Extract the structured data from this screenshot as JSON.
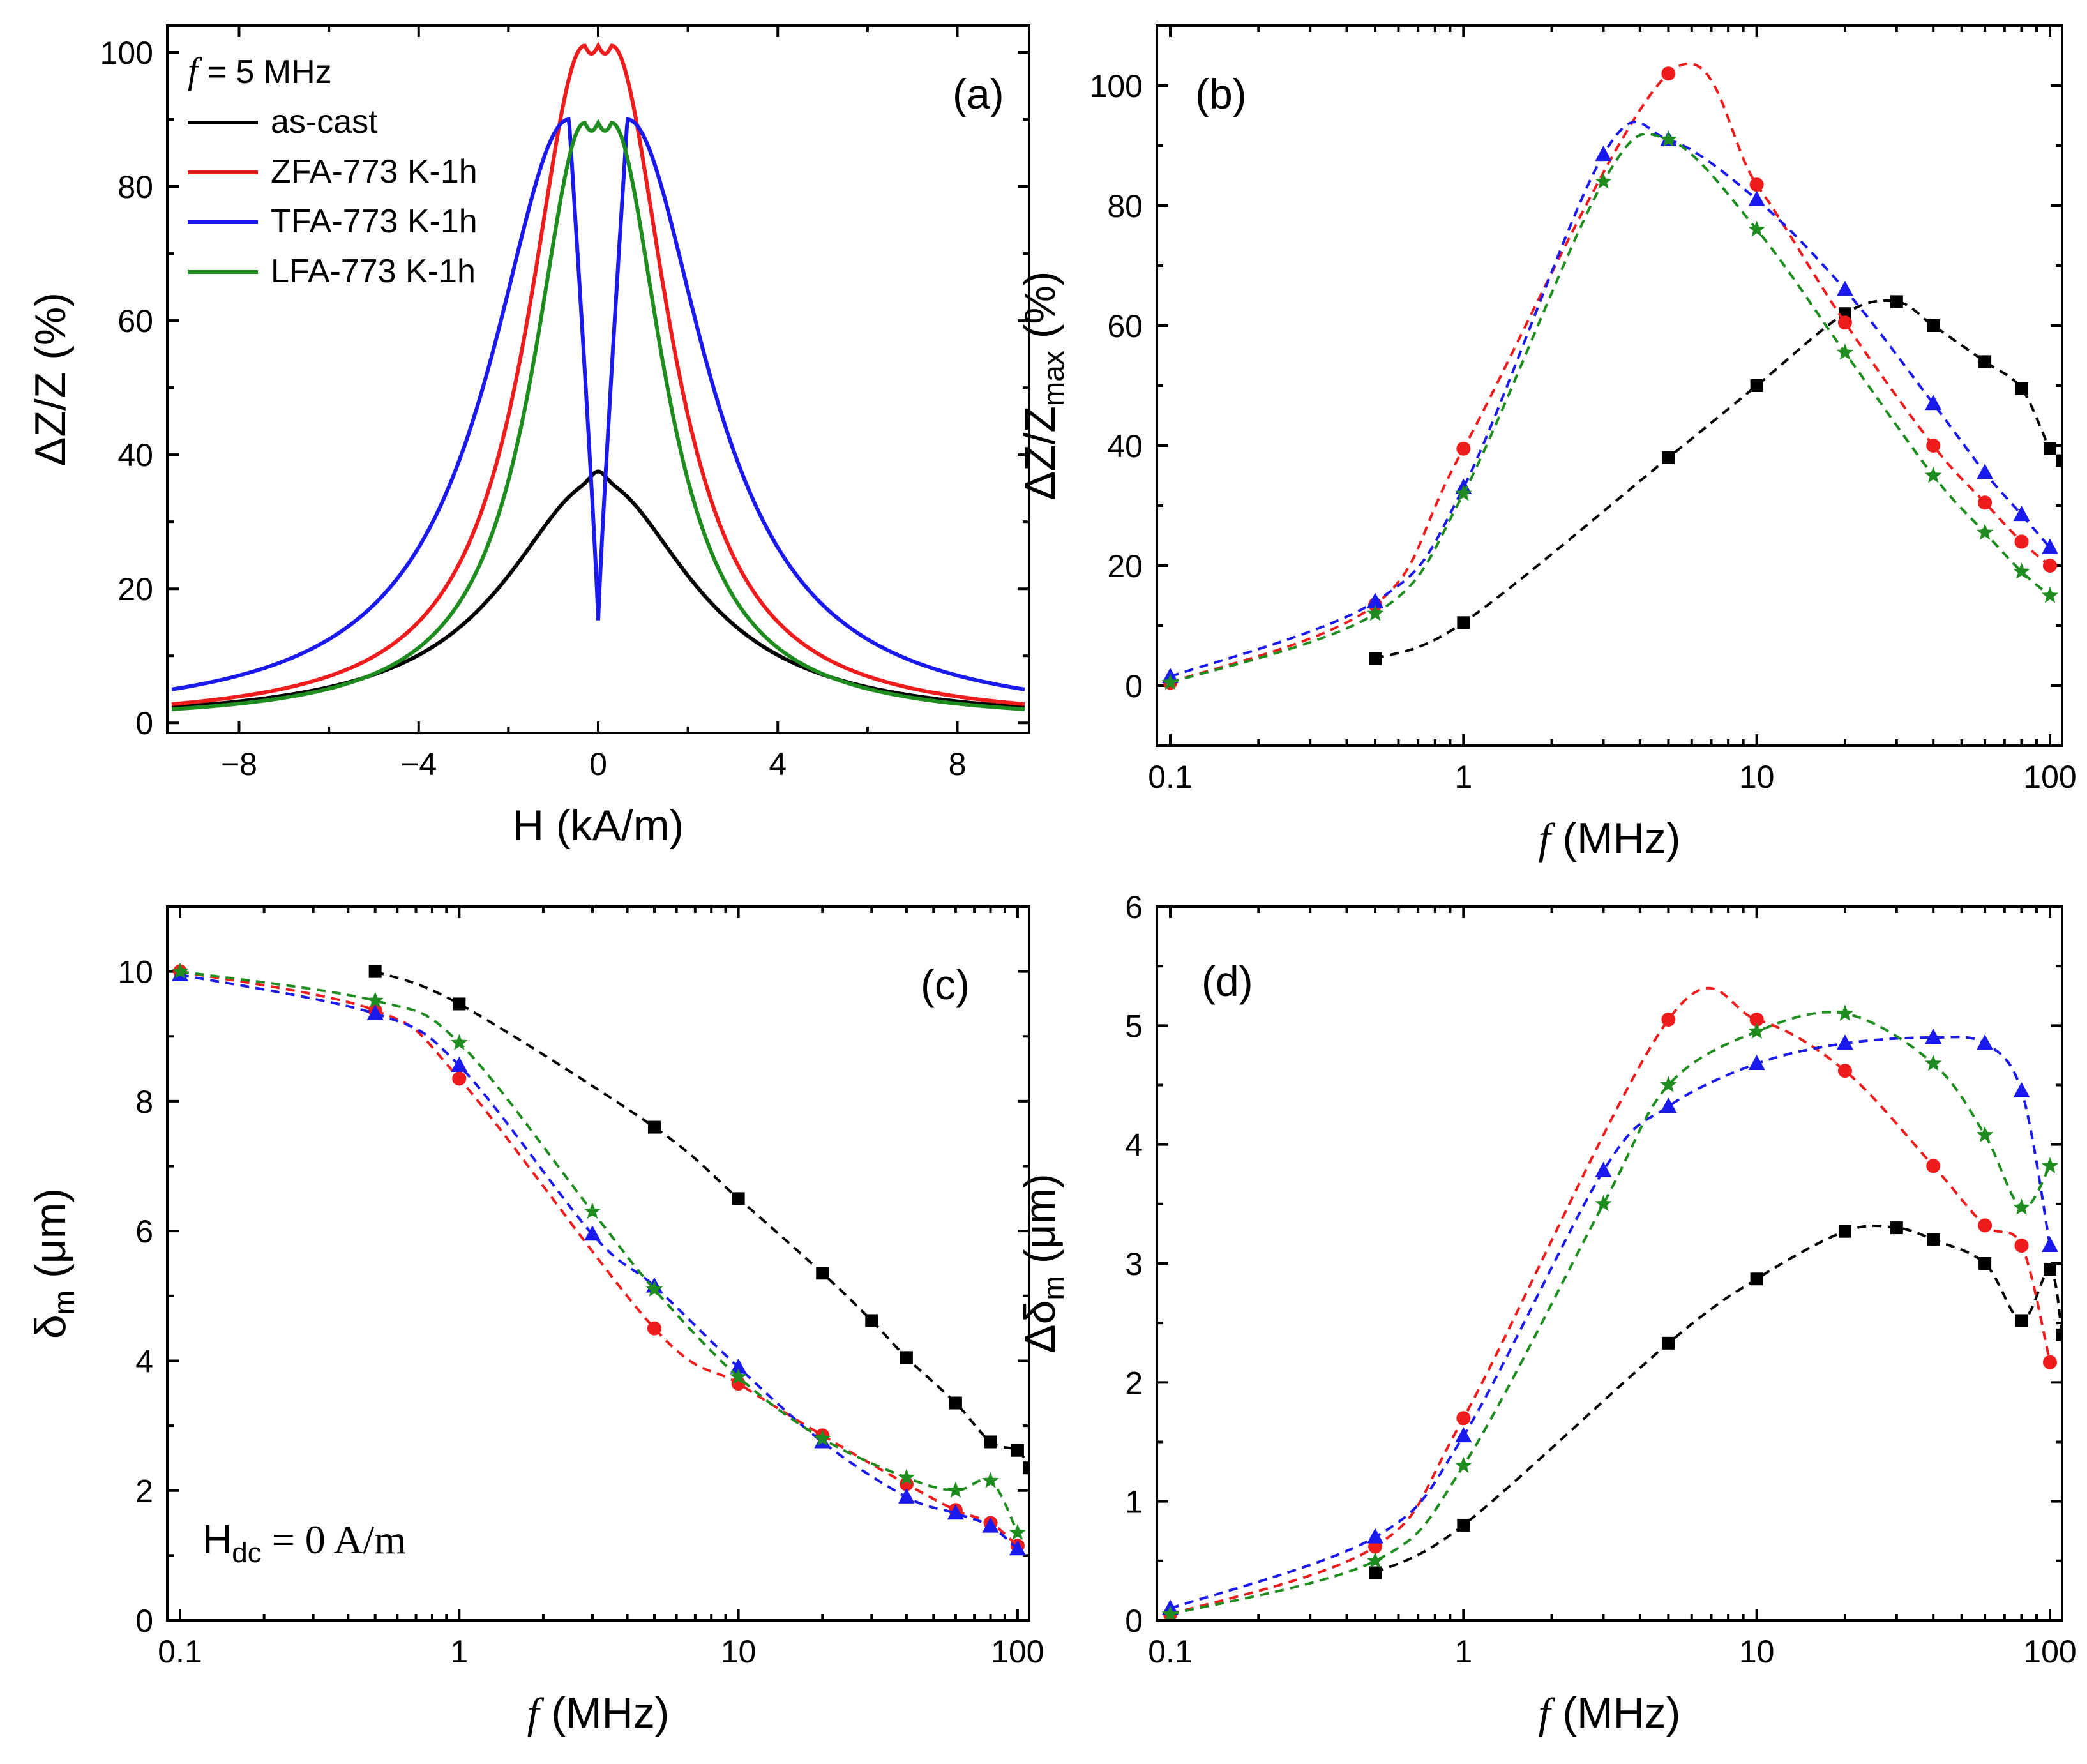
{
  "colors": {
    "as_cast": "#000000",
    "zfa": "#ee1c1c",
    "tfa": "#1a1aee",
    "lfa": "#1f8c1f"
  },
  "chart_data": [
    {
      "id": "a",
      "type": "line",
      "panel_label": "(a)",
      "xlabel": "H (kA/m)",
      "ylabel": "ΔZ/Z (%)",
      "xlim": [
        -9.6,
        9.6
      ],
      "ylim": [
        -1.5,
        104
      ],
      "xticks": [
        -8,
        -4,
        0,
        4,
        8
      ],
      "xtick_labels": [
        "−8",
        "−4",
        "0",
        "4",
        "8"
      ],
      "yticks": [
        0,
        20,
        40,
        60,
        80,
        100
      ],
      "legend_title_italic": "f",
      "legend_title_rest": " = 5 MHz",
      "legend_position": "top-left",
      "series": [
        {
          "name": "as-cast",
          "color_key": "as_cast",
          "model": "lorentz",
          "peak": 36,
          "hk": 0,
          "w": 2.5,
          "dip": 0,
          "tip": 1.5
        },
        {
          "name": "ZFA-773 K-1h",
          "color_key": "zfa",
          "model": "lorentz",
          "peak": 101,
          "hk": 0.3,
          "w": 1.55,
          "dip": 0,
          "tip": 0
        },
        {
          "name": "TFA-773 K-1h",
          "color_key": "tfa",
          "model": "lorentz",
          "peak": 90,
          "hk": 0.65,
          "w": 2.35,
          "dip": 1,
          "tip": 0
        },
        {
          "name": "LFA-773 K-1h",
          "color_key": "lfa",
          "model": "lorentz",
          "peak": 89.5,
          "hk": 0.3,
          "w": 1.4,
          "dip": 0,
          "tip": 0
        }
      ]
    },
    {
      "id": "b",
      "type": "line",
      "scale": "log",
      "panel_label": "(b)",
      "xlabel_italic": "f",
      "xlabel_rest": " (MHz)",
      "ylabel": "ΔZ/Z",
      "ylabel_sub": "max",
      "ylabel_tail": " (%)",
      "xlim": [
        0.09,
        110
      ],
      "ylim": [
        -10,
        110
      ],
      "xticks": [
        0.1,
        1,
        10,
        100
      ],
      "xtick_labels": [
        "0.1",
        "1",
        "10",
        "100"
      ],
      "yticks": [
        0,
        20,
        40,
        60,
        80,
        100
      ],
      "series": [
        {
          "name": "as-cast",
          "color_key": "as_cast",
          "marker": "square",
          "x": [
            0.5,
            1,
            5,
            10,
            20,
            30,
            40,
            60,
            80,
            100,
            110
          ],
          "y": [
            4.5,
            10.5,
            38,
            50,
            62,
            64,
            60,
            54,
            49.5,
            39.5,
            37.5
          ]
        },
        {
          "name": "ZFA-773 K-1h",
          "color_key": "zfa",
          "marker": "circle",
          "x": [
            0.1,
            0.5,
            1,
            5,
            10,
            20,
            40,
            60,
            80,
            100
          ],
          "y": [
            0.5,
            13.5,
            39.5,
            102,
            83.5,
            60.5,
            40,
            30.5,
            24,
            20
          ]
        },
        {
          "name": "TFA-773 K-1h",
          "color_key": "tfa",
          "marker": "triangle",
          "x": [
            0.1,
            0.5,
            1,
            3,
            5,
            10,
            20,
            40,
            60,
            80,
            100
          ],
          "y": [
            1.5,
            14,
            33,
            88.5,
            91,
            81,
            66,
            47,
            35.5,
            28.5,
            23
          ]
        },
        {
          "name": "LFA-773 K-1h",
          "color_key": "lfa",
          "marker": "star",
          "x": [
            0.1,
            0.5,
            1,
            3,
            5,
            10,
            20,
            40,
            60,
            80,
            100
          ],
          "y": [
            0.5,
            12,
            32,
            84,
            91,
            76,
            55.5,
            35,
            25.5,
            19,
            15
          ]
        }
      ]
    },
    {
      "id": "c",
      "type": "line",
      "scale": "log",
      "panel_label": "(c)",
      "xlabel_italic": "f",
      "xlabel_rest": " (MHz)",
      "ylabel": "δ",
      "ylabel_sub": "m",
      "ylabel_tail": " (μm)",
      "annotation": "H",
      "annotation_sub": "dc",
      "annotation_tail": " = 0 A/m",
      "xlim": [
        0.09,
        110
      ],
      "ylim": [
        0,
        11
      ],
      "xticks": [
        0.1,
        1,
        10,
        100
      ],
      "xtick_labels": [
        "0.1",
        "1",
        "10",
        "100"
      ],
      "yticks": [
        0,
        2,
        4,
        6,
        8,
        10
      ],
      "series": [
        {
          "name": "as-cast",
          "color_key": "as_cast",
          "marker": "square",
          "x": [
            0.5,
            1,
            5,
            10,
            20,
            30,
            40,
            60,
            80,
            100,
            110
          ],
          "y": [
            10,
            9.5,
            7.6,
            6.5,
            5.35,
            4.62,
            4.05,
            3.35,
            2.75,
            2.62,
            2.35
          ]
        },
        {
          "name": "ZFA-773 K-1h",
          "color_key": "zfa",
          "marker": "circle",
          "x": [
            0.1,
            0.5,
            1,
            5,
            10,
            20,
            40,
            60,
            80,
            100
          ],
          "y": [
            10,
            9.4,
            8.35,
            4.5,
            3.65,
            2.85,
            2.1,
            1.7,
            1.5,
            1.15
          ]
        },
        {
          "name": "TFA-773 K-1h",
          "color_key": "tfa",
          "marker": "triangle",
          "x": [
            0.1,
            0.5,
            1,
            3,
            5,
            10,
            20,
            40,
            60,
            80,
            100
          ],
          "y": [
            9.95,
            9.35,
            8.55,
            5.95,
            5.15,
            3.9,
            2.75,
            1.9,
            1.65,
            1.45,
            1.1
          ]
        },
        {
          "name": "LFA-773 K-1h",
          "color_key": "lfa",
          "marker": "star",
          "x": [
            0.1,
            0.5,
            1,
            3,
            5,
            10,
            20,
            40,
            60,
            80,
            100
          ],
          "y": [
            10,
            9.55,
            8.9,
            6.3,
            5.1,
            3.75,
            2.8,
            2.2,
            2.0,
            2.15,
            1.35
          ]
        }
      ]
    },
    {
      "id": "d",
      "type": "line",
      "scale": "log",
      "panel_label": "(d)",
      "xlabel_italic": "f",
      "xlabel_rest": " (MHz)",
      "ylabel": "Δδ",
      "ylabel_sub": "m",
      "ylabel_tail": " (μm)",
      "xlim": [
        0.09,
        110
      ],
      "ylim": [
        0,
        6
      ],
      "xticks": [
        0.1,
        1,
        10,
        100
      ],
      "xtick_labels": [
        "0.1",
        "1",
        "10",
        "100"
      ],
      "yticks": [
        0,
        1,
        2,
        3,
        4,
        5,
        6
      ],
      "series": [
        {
          "name": "as-cast",
          "color_key": "as_cast",
          "marker": "square",
          "x": [
            0.5,
            1,
            5,
            10,
            20,
            30,
            40,
            60,
            80,
            100,
            110
          ],
          "y": [
            0.4,
            0.8,
            2.33,
            2.87,
            3.27,
            3.3,
            3.2,
            3.0,
            2.52,
            2.95,
            2.4
          ]
        },
        {
          "name": "ZFA-773 K-1h",
          "color_key": "zfa",
          "marker": "circle",
          "x": [
            0.1,
            0.5,
            1,
            5,
            10,
            20,
            40,
            60,
            80,
            100
          ],
          "y": [
            0.05,
            0.62,
            1.7,
            5.05,
            5.05,
            4.62,
            3.82,
            3.32,
            3.15,
            2.17
          ]
        },
        {
          "name": "TFA-773 K-1h",
          "color_key": "tfa",
          "marker": "triangle",
          "x": [
            0.1,
            0.5,
            1,
            3,
            5,
            10,
            20,
            40,
            60,
            80,
            100
          ],
          "y": [
            0.1,
            0.7,
            1.55,
            3.78,
            4.32,
            4.68,
            4.85,
            4.9,
            4.85,
            4.45,
            3.15
          ]
        },
        {
          "name": "LFA-773 K-1h",
          "color_key": "lfa",
          "marker": "star",
          "x": [
            0.1,
            0.5,
            1,
            3,
            5,
            10,
            20,
            40,
            60,
            80,
            100
          ],
          "y": [
            0.05,
            0.5,
            1.3,
            3.5,
            4.5,
            4.95,
            5.1,
            4.68,
            4.08,
            3.47,
            3.82
          ]
        }
      ]
    }
  ]
}
